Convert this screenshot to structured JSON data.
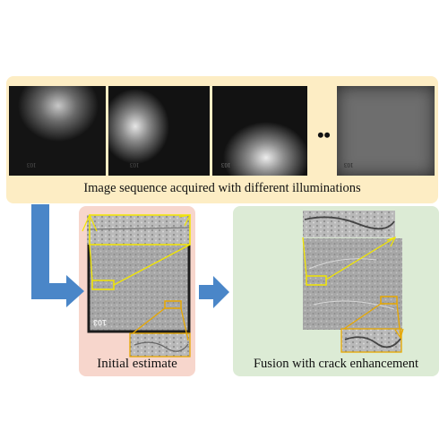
{
  "top": {
    "caption": "Image sequence acquired with different illuminations",
    "ellipsis": "• •",
    "frame_labels": [
      "103",
      "103",
      "103",
      "103"
    ]
  },
  "left": {
    "caption": "Initial estimate",
    "specimen_label": "103"
  },
  "right": {
    "caption": "Fusion with crack enhancement"
  },
  "colors": {
    "top_panel": "#fdedc4",
    "left_panel": "#f7d6cc",
    "right_panel": "#dcebd5",
    "arrow": "#4a86c8",
    "highlight": "#f2e600",
    "highlight_orange": "#e8a800"
  }
}
